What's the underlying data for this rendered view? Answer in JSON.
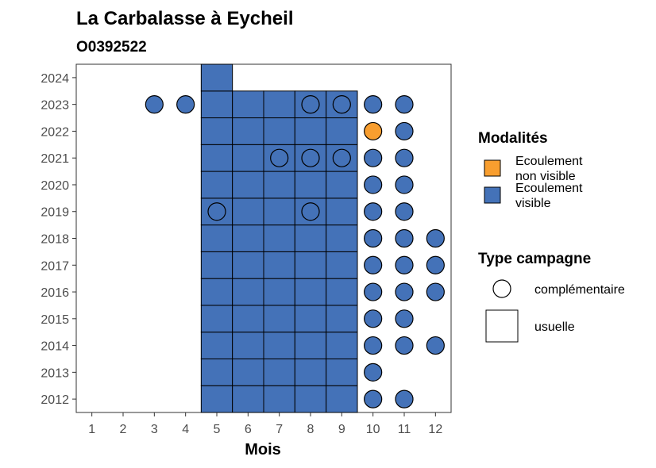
{
  "chart_data": {
    "type": "scatter",
    "title": "La Carbalasse à Eycheil",
    "subtitle": "O0392522",
    "xlabel": "Mois",
    "ylabel": "",
    "x_ticks": [
      "1",
      "2",
      "3",
      "4",
      "5",
      "6",
      "7",
      "8",
      "9",
      "10",
      "11",
      "12"
    ],
    "y_ticks": [
      "2012",
      "2013",
      "2014",
      "2015",
      "2016",
      "2017",
      "2018",
      "2019",
      "2020",
      "2021",
      "2022",
      "2023",
      "2024"
    ],
    "xlim": [
      0.5,
      12.5
    ],
    "ylim": [
      2011.5,
      2024.5
    ],
    "grid": false,
    "colors": {
      "ecoulement_visible": "#4472b8",
      "ecoulement_non_visible": "#f89e2f"
    },
    "legend": {
      "placement": "right",
      "modalites_title": "Modalités",
      "modalites": [
        {
          "key": "ecoulement_non_visible",
          "label_lines": [
            "Ecoulement",
            "non visible"
          ]
        },
        {
          "key": "ecoulement_visible",
          "label_lines": [
            "Ecoulement",
            "visible"
          ]
        }
      ],
      "type_title": "Type campagne",
      "types": [
        {
          "shape": "circle",
          "label": "complémentaire"
        },
        {
          "shape": "square",
          "label": "usuelle"
        }
      ]
    },
    "usuelle": [
      {
        "month": 5,
        "years": [
          2012,
          2013,
          2014,
          2015,
          2016,
          2017,
          2018,
          2019,
          2020,
          2021,
          2022,
          2023,
          2024
        ],
        "modalite": "ecoulement_visible"
      },
      {
        "month": 6,
        "years": [
          2012,
          2013,
          2014,
          2015,
          2016,
          2017,
          2018,
          2019,
          2020,
          2021,
          2022,
          2023
        ],
        "modalite": "ecoulement_visible"
      },
      {
        "month": 7,
        "years": [
          2012,
          2013,
          2014,
          2015,
          2016,
          2017,
          2018,
          2019,
          2020,
          2021,
          2022,
          2023
        ],
        "modalite": "ecoulement_visible"
      },
      {
        "month": 8,
        "years": [
          2012,
          2013,
          2014,
          2015,
          2016,
          2017,
          2018,
          2019,
          2020,
          2021,
          2022,
          2023
        ],
        "modalite": "ecoulement_visible"
      },
      {
        "month": 9,
        "years": [
          2012,
          2013,
          2014,
          2015,
          2016,
          2017,
          2018,
          2019,
          2020,
          2021,
          2022,
          2023
        ],
        "modalite": "ecoulement_visible"
      }
    ],
    "complementaire": [
      {
        "month": 3,
        "year": 2023,
        "modalite": "ecoulement_visible"
      },
      {
        "month": 4,
        "year": 2023,
        "modalite": "ecoulement_visible"
      },
      {
        "month": 8,
        "year": 2023,
        "modalite": "ecoulement_visible"
      },
      {
        "month": 9,
        "year": 2023,
        "modalite": "ecoulement_visible"
      },
      {
        "month": 10,
        "year": 2023,
        "modalite": "ecoulement_visible"
      },
      {
        "month": 11,
        "year": 2023,
        "modalite": "ecoulement_visible"
      },
      {
        "month": 10,
        "year": 2022,
        "modalite": "ecoulement_non_visible"
      },
      {
        "month": 11,
        "year": 2022,
        "modalite": "ecoulement_visible"
      },
      {
        "month": 7,
        "year": 2021,
        "modalite": "ecoulement_visible"
      },
      {
        "month": 8,
        "year": 2021,
        "modalite": "ecoulement_visible"
      },
      {
        "month": 9,
        "year": 2021,
        "modalite": "ecoulement_visible"
      },
      {
        "month": 10,
        "year": 2021,
        "modalite": "ecoulement_visible"
      },
      {
        "month": 11,
        "year": 2021,
        "modalite": "ecoulement_visible"
      },
      {
        "month": 10,
        "year": 2020,
        "modalite": "ecoulement_visible"
      },
      {
        "month": 11,
        "year": 2020,
        "modalite": "ecoulement_visible"
      },
      {
        "month": 5,
        "year": 2019,
        "modalite": "ecoulement_visible"
      },
      {
        "month": 8,
        "year": 2019,
        "modalite": "ecoulement_visible"
      },
      {
        "month": 10,
        "year": 2019,
        "modalite": "ecoulement_visible"
      },
      {
        "month": 11,
        "year": 2019,
        "modalite": "ecoulement_visible"
      },
      {
        "month": 10,
        "year": 2018,
        "modalite": "ecoulement_visible"
      },
      {
        "month": 11,
        "year": 2018,
        "modalite": "ecoulement_visible"
      },
      {
        "month": 12,
        "year": 2018,
        "modalite": "ecoulement_visible"
      },
      {
        "month": 10,
        "year": 2017,
        "modalite": "ecoulement_visible"
      },
      {
        "month": 11,
        "year": 2017,
        "modalite": "ecoulement_visible"
      },
      {
        "month": 12,
        "year": 2017,
        "modalite": "ecoulement_visible"
      },
      {
        "month": 10,
        "year": 2016,
        "modalite": "ecoulement_visible"
      },
      {
        "month": 11,
        "year": 2016,
        "modalite": "ecoulement_visible"
      },
      {
        "month": 12,
        "year": 2016,
        "modalite": "ecoulement_visible"
      },
      {
        "month": 10,
        "year": 2015,
        "modalite": "ecoulement_visible"
      },
      {
        "month": 11,
        "year": 2015,
        "modalite": "ecoulement_visible"
      },
      {
        "month": 10,
        "year": 2014,
        "modalite": "ecoulement_visible"
      },
      {
        "month": 11,
        "year": 2014,
        "modalite": "ecoulement_visible"
      },
      {
        "month": 12,
        "year": 2014,
        "modalite": "ecoulement_visible"
      },
      {
        "month": 10,
        "year": 2013,
        "modalite": "ecoulement_visible"
      },
      {
        "month": 10,
        "year": 2012,
        "modalite": "ecoulement_visible"
      },
      {
        "month": 11,
        "year": 2012,
        "modalite": "ecoulement_visible"
      }
    ]
  }
}
